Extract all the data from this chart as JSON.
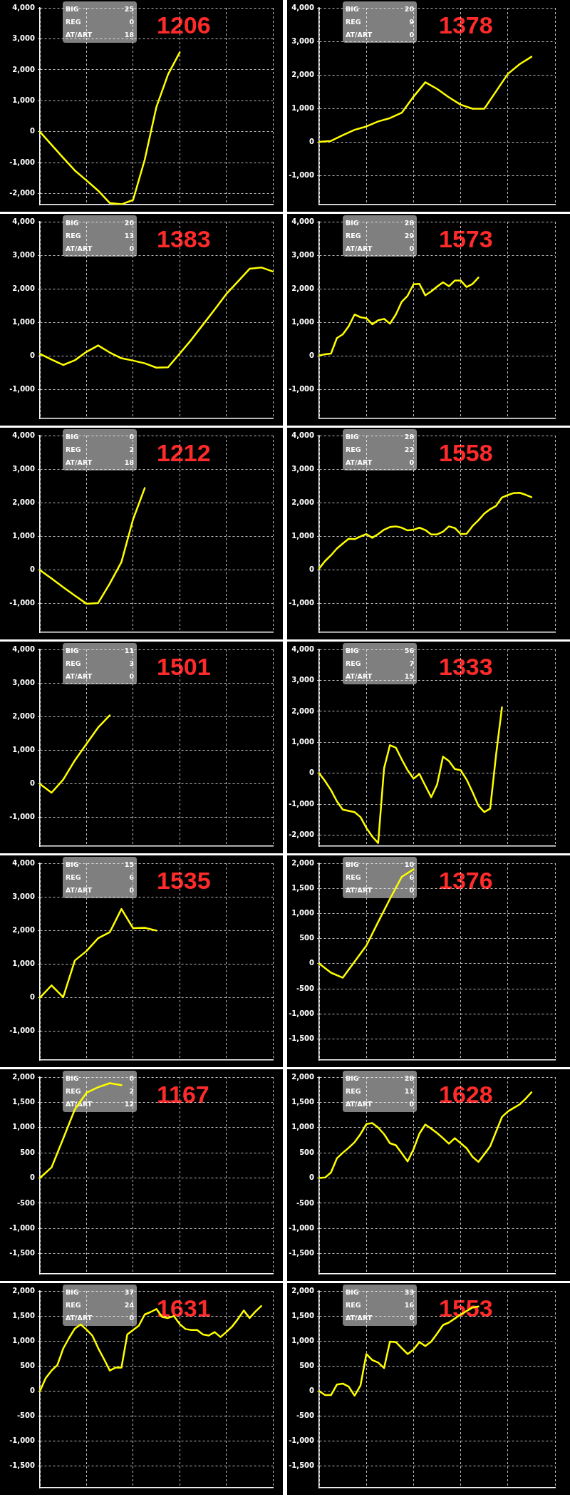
{
  "chart_data": [
    {
      "type": "line",
      "title": "1206",
      "annotations": [
        "BIG",
        "25",
        "REG",
        "0",
        "AT/ART",
        "18"
      ],
      "grid": true,
      "marker": "none",
      "line_style": "solid",
      "tick_labels": "y",
      "ylim": [
        -2350,
        4000
      ],
      "yticks": [
        {
          "value": -2000,
          "label": "-2,000"
        },
        {
          "value": -1000,
          "label": "-1,000"
        },
        0,
        {
          "value": 1000,
          "label": "1,000"
        },
        {
          "value": 2000,
          "label": "2,000"
        },
        {
          "value": 3000,
          "label": "3,000"
        },
        {
          "value": 4000,
          "label": "4,000"
        }
      ],
      "categories": [
        null,
        null,
        null,
        null,
        null,
        null,
        null,
        null,
        null,
        null,
        null,
        null,
        null,
        null,
        null,
        null,
        null,
        null,
        null,
        null,
        null
      ],
      "series": [
        {
          "color": "#ffff00",
          "values": [
            0,
            -420,
            -840,
            -1250,
            -1570,
            -1900,
            -2300,
            -2340,
            -2200,
            -900,
            800,
            1850,
            2560,
            null,
            null,
            null,
            null,
            null,
            null,
            null,
            null
          ]
        }
      ]
    },
    {
      "type": "line",
      "title": "1378",
      "annotations": [
        "BIG",
        "20",
        "REG",
        "9",
        "AT/ART",
        "0"
      ],
      "grid": true,
      "marker": "none",
      "line_style": "solid",
      "tick_labels": "y",
      "ylim": [
        -1870,
        4000
      ],
      "yticks": [
        {
          "value": -1000,
          "label": "-1,000"
        },
        0,
        {
          "value": 1000,
          "label": "1,000"
        },
        {
          "value": 2000,
          "label": "2,000"
        },
        {
          "value": 3000,
          "label": "3,000"
        },
        {
          "value": 4000,
          "label": "4,000"
        }
      ],
      "categories": [
        null,
        null,
        null,
        null,
        null,
        null,
        null,
        null,
        null,
        null,
        null,
        null,
        null,
        null,
        null,
        null,
        null,
        null,
        null,
        null,
        null
      ],
      "series": [
        {
          "color": "#ffff00",
          "values": [
            0,
            30,
            200,
            360,
            460,
            610,
            710,
            870,
            1350,
            1780,
            1580,
            1330,
            1110,
            990,
            990,
            1510,
            2030,
            2320,
            2540,
            null,
            null
          ]
        }
      ]
    },
    {
      "type": "line",
      "title": "1383",
      "annotations": [
        "BIG",
        "20",
        "REG",
        "13",
        "AT/ART",
        "0"
      ],
      "grid": true,
      "marker": "none",
      "line_style": "solid",
      "tick_labels": "y",
      "ylim": [
        -1850,
        4000
      ],
      "yticks": [
        {
          "value": -1000,
          "label": "-1,000"
        },
        0,
        {
          "value": 1000,
          "label": "1,000"
        },
        {
          "value": 2000,
          "label": "2,000"
        },
        {
          "value": 3000,
          "label": "3,000"
        },
        {
          "value": 4000,
          "label": "4,000"
        }
      ],
      "categories": [
        null,
        null,
        null,
        null,
        null,
        null,
        null,
        null,
        null,
        null,
        null,
        null,
        null,
        null,
        null,
        null,
        null,
        null,
        null,
        null,
        null
      ],
      "series": [
        {
          "color": "#ffff00",
          "values": [
            70,
            -100,
            -260,
            -120,
            130,
            320,
            110,
            -60,
            -130,
            -210,
            -340,
            -330,
            80,
            490,
            940,
            1390,
            1850,
            2220,
            2600,
            2640,
            2520
          ]
        }
      ]
    },
    {
      "type": "line",
      "title": "1573",
      "annotations": [
        "BIG",
        "28",
        "REG",
        "29",
        "AT/ART",
        "0"
      ],
      "grid": true,
      "marker": "none",
      "line_style": "solid",
      "tick_labels": "y",
      "ylim": [
        -1850,
        4000
      ],
      "yticks": [
        {
          "value": -1000,
          "label": "-1,000"
        },
        0,
        {
          "value": 1000,
          "label": "1,000"
        },
        {
          "value": 2000,
          "label": "2,000"
        },
        {
          "value": 3000,
          "label": "3,000"
        },
        {
          "value": 4000,
          "label": "4,000"
        }
      ],
      "categories": [
        null,
        null,
        null,
        null,
        null,
        null,
        null,
        null,
        null,
        null,
        null,
        null,
        null,
        null,
        null,
        null,
        null,
        null,
        null,
        null,
        null,
        null,
        null,
        null,
        null,
        null,
        null,
        null,
        null,
        null,
        null,
        null,
        null,
        null,
        null,
        null,
        null,
        null,
        null,
        null,
        null
      ],
      "series": [
        {
          "color": "#ffff00",
          "values": [
            20,
            60,
            80,
            540,
            650,
            890,
            1240,
            1160,
            1130,
            950,
            1070,
            1110,
            970,
            1240,
            1620,
            1800,
            2140,
            2150,
            1810,
            1930,
            2070,
            2200,
            2080,
            2250,
            2250,
            2060,
            2150,
            2340,
            null,
            null,
            null,
            null,
            null,
            null,
            null,
            null,
            null,
            null,
            null,
            null,
            null
          ]
        }
      ]
    },
    {
      "type": "line",
      "title": "1212",
      "annotations": [
        "BIG",
        "0",
        "REG",
        "2",
        "AT/ART",
        "18"
      ],
      "grid": true,
      "marker": "none",
      "line_style": "solid",
      "tick_labels": "y",
      "ylim": [
        -1850,
        4000
      ],
      "yticks": [
        {
          "value": -1000,
          "label": "-1,000"
        },
        0,
        {
          "value": 1000,
          "label": "1,000"
        },
        {
          "value": 2000,
          "label": "2,000"
        },
        {
          "value": 3000,
          "label": "3,000"
        },
        {
          "value": 4000,
          "label": "4,000"
        }
      ],
      "categories": [
        null,
        null,
        null,
        null,
        null,
        null,
        null,
        null,
        null,
        null,
        null,
        null,
        null,
        null,
        null,
        null,
        null,
        null,
        null,
        null,
        null
      ],
      "series": [
        {
          "color": "#ffff00",
          "values": [
            0,
            -250,
            -510,
            -760,
            -1000,
            -980,
            -400,
            240,
            1510,
            2440,
            null,
            null,
            null,
            null,
            null,
            null,
            null,
            null,
            null,
            null,
            null
          ]
        }
      ]
    },
    {
      "type": "line",
      "title": "1558",
      "annotations": [
        "BIG",
        "28",
        "REG",
        "22",
        "AT/ART",
        "0"
      ],
      "grid": true,
      "marker": "none",
      "line_style": "solid",
      "tick_labels": "y",
      "ylim": [
        -1850,
        4000
      ],
      "yticks": [
        {
          "value": -1000,
          "label": "-1,000"
        },
        0,
        {
          "value": 1000,
          "label": "1,000"
        },
        {
          "value": 2000,
          "label": "2,000"
        },
        {
          "value": 3000,
          "label": "3,000"
        },
        {
          "value": 4000,
          "label": "4,000"
        }
      ],
      "categories": [
        null,
        null,
        null,
        null,
        null,
        null,
        null,
        null,
        null,
        null,
        null,
        null,
        null,
        null,
        null,
        null,
        null,
        null,
        null,
        null,
        null,
        null,
        null,
        null,
        null,
        null,
        null,
        null,
        null,
        null,
        null,
        null,
        null,
        null,
        null,
        null,
        null,
        null,
        null,
        null,
        null
      ],
      "series": [
        {
          "color": "#ffff00",
          "values": [
            50,
            270,
            440,
            640,
            790,
            930,
            920,
            1000,
            1070,
            960,
            1070,
            1200,
            1280,
            1300,
            1260,
            1180,
            1200,
            1260,
            1190,
            1060,
            1060,
            1140,
            1300,
            1250,
            1070,
            1080,
            1310,
            1480,
            1680,
            1810,
            1910,
            2160,
            2230,
            2290,
            2300,
            2240,
            2170,
            null,
            null,
            null,
            null
          ]
        }
      ]
    },
    {
      "type": "line",
      "title": "1501",
      "annotations": [
        "BIG",
        "11",
        "REG",
        "3",
        "AT/ART",
        "0"
      ],
      "grid": true,
      "marker": "none",
      "line_style": "solid",
      "tick_labels": "y",
      "ylim": [
        -1850,
        4000
      ],
      "yticks": [
        {
          "value": -1000,
          "label": "-1,000"
        },
        0,
        {
          "value": 1000,
          "label": "1,000"
        },
        {
          "value": 2000,
          "label": "2,000"
        },
        {
          "value": 3000,
          "label": "3,000"
        },
        {
          "value": 4000,
          "label": "4,000"
        }
      ],
      "categories": [
        null,
        null,
        null,
        null,
        null,
        null,
        null,
        null,
        null,
        null,
        null,
        null,
        null,
        null,
        null,
        null,
        null,
        null,
        null,
        null,
        null
      ],
      "series": [
        {
          "color": "#ffff00",
          "values": [
            0,
            -260,
            130,
            700,
            1190,
            1680,
            2040,
            null,
            null,
            null,
            null,
            null,
            null,
            null,
            null,
            null,
            null,
            null,
            null,
            null,
            null
          ]
        }
      ]
    },
    {
      "type": "line",
      "title": "1333",
      "annotations": [
        "BIG",
        "56",
        "REG",
        "7",
        "AT/ART",
        "15"
      ],
      "grid": true,
      "marker": "none",
      "line_style": "solid",
      "tick_labels": "y",
      "ylim": [
        -2350,
        4000
      ],
      "yticks": [
        {
          "value": -2000,
          "label": "-2,000"
        },
        {
          "value": -1000,
          "label": "-1,000"
        },
        0,
        {
          "value": 1000,
          "label": "1,000"
        },
        {
          "value": 2000,
          "label": "2,000"
        },
        {
          "value": 3000,
          "label": "3,000"
        },
        {
          "value": 4000,
          "label": "4,000"
        }
      ],
      "categories": [
        null,
        null,
        null,
        null,
        null,
        null,
        null,
        null,
        null,
        null,
        null,
        null,
        null,
        null,
        null,
        null,
        null,
        null,
        null,
        null,
        null,
        null,
        null,
        null,
        null,
        null,
        null,
        null,
        null,
        null,
        null,
        null,
        null,
        null,
        null,
        null,
        null,
        null,
        null,
        null,
        null
      ],
      "series": [
        {
          "color": "#ffff00",
          "values": [
            0,
            -250,
            -540,
            -900,
            -1170,
            -1210,
            -1250,
            -1410,
            -1760,
            -2040,
            -2250,
            160,
            910,
            830,
            450,
            100,
            -170,
            -20,
            -400,
            -770,
            -360,
            540,
            400,
            140,
            100,
            -200,
            -600,
            -1040,
            -1250,
            -1140,
            600,
            2130,
            null,
            null,
            null,
            null,
            null,
            null,
            null,
            null,
            null
          ]
        }
      ]
    },
    {
      "type": "line",
      "title": "1535",
      "annotations": [
        "BIG",
        "15",
        "REG",
        "6",
        "AT/ART",
        "0"
      ],
      "grid": true,
      "marker": "none",
      "line_style": "solid",
      "tick_labels": "y",
      "ylim": [
        -1850,
        4000
      ],
      "yticks": [
        {
          "value": -1000,
          "label": "-1,000"
        },
        0,
        {
          "value": 1000,
          "label": "1,000"
        },
        {
          "value": 2000,
          "label": "2,000"
        },
        {
          "value": 3000,
          "label": "3,000"
        },
        {
          "value": 4000,
          "label": "4,000"
        }
      ],
      "categories": [
        null,
        null,
        null,
        null,
        null,
        null,
        null,
        null,
        null,
        null,
        null,
        null,
        null,
        null,
        null,
        null,
        null,
        null,
        null,
        null,
        null
      ],
      "series": [
        {
          "color": "#ffff00",
          "values": [
            0,
            370,
            20,
            1110,
            1390,
            1770,
            1950,
            2640,
            2070,
            2080,
            2000,
            null,
            null,
            null,
            null,
            null,
            null,
            null,
            null,
            null,
            null
          ]
        }
      ]
    },
    {
      "type": "line",
      "title": "1376",
      "annotations": [
        "BIG",
        "10",
        "REG",
        "6",
        "AT/ART",
        "0"
      ],
      "grid": true,
      "marker": "none",
      "line_style": "solid",
      "tick_labels": "y",
      "ylim": [
        -1920,
        2000
      ],
      "yticks": [
        {
          "value": -1500,
          "label": "-1,500"
        },
        {
          "value": -1000,
          "label": "-1,000"
        },
        -500,
        0,
        500,
        {
          "value": 1000,
          "label": "1,000"
        },
        {
          "value": 1500,
          "label": "1,500"
        },
        {
          "value": 2000,
          "label": "2,000"
        }
      ],
      "categories": [
        null,
        null,
        null,
        null,
        null,
        null,
        null,
        null,
        null,
        null,
        null,
        null,
        null,
        null,
        null,
        null,
        null,
        null,
        null,
        null,
        null
      ],
      "series": [
        {
          "color": "#ffff00",
          "values": [
            0,
            -180,
            -280,
            40,
            360,
            830,
            1290,
            1730,
            1880,
            null,
            null,
            null,
            null,
            null,
            null,
            null,
            null,
            null,
            null,
            null,
            null
          ]
        }
      ]
    },
    {
      "type": "line",
      "title": "1167",
      "annotations": [
        "BIG",
        "0",
        "REG",
        "2",
        "AT/ART",
        "12"
      ],
      "grid": true,
      "marker": "none",
      "line_style": "solid",
      "tick_labels": "y",
      "ylim": [
        -1900,
        2000
      ],
      "yticks": [
        {
          "value": -1500,
          "label": "-1,500"
        },
        {
          "value": -1000,
          "label": "-1,000"
        },
        -500,
        0,
        500,
        {
          "value": 1000,
          "label": "1,000"
        },
        {
          "value": 1500,
          "label": "1,500"
        },
        {
          "value": 2000,
          "label": "2,000"
        }
      ],
      "categories": [
        null,
        null,
        null,
        null,
        null,
        null,
        null,
        null,
        null,
        null,
        null,
        null,
        null,
        null,
        null,
        null,
        null,
        null,
        null,
        null,
        null
      ],
      "series": [
        {
          "color": "#ffff00",
          "values": [
            0,
            210,
            780,
            1360,
            1690,
            1800,
            1880,
            1840,
            null,
            null,
            null,
            null,
            null,
            null,
            null,
            null,
            null,
            null,
            null,
            null,
            null
          ]
        }
      ]
    },
    {
      "type": "line",
      "title": "1628",
      "annotations": [
        "BIG",
        "28",
        "REG",
        "11",
        "AT/ART",
        "0"
      ],
      "grid": true,
      "marker": "none",
      "line_style": "solid",
      "tick_labels": "y",
      "ylim": [
        -1900,
        2000
      ],
      "yticks": [
        {
          "value": -1500,
          "label": "-1,500"
        },
        {
          "value": -1000,
          "label": "-1,000"
        },
        -500,
        0,
        500,
        {
          "value": 1000,
          "label": "1,000"
        },
        {
          "value": 1500,
          "label": "1,500"
        },
        {
          "value": 2000,
          "label": "2,000"
        }
      ],
      "categories": [
        null,
        null,
        null,
        null,
        null,
        null,
        null,
        null,
        null,
        null,
        null,
        null,
        null,
        null,
        null,
        null,
        null,
        null,
        null,
        null,
        null,
        null,
        null,
        null,
        null,
        null,
        null,
        null,
        null,
        null,
        null,
        null,
        null,
        null,
        null,
        null,
        null,
        null,
        null,
        null,
        null
      ],
      "series": [
        {
          "color": "#ffff00",
          "values": [
            0,
            10,
            110,
            390,
            500,
            600,
            710,
            870,
            1070,
            1090,
            1000,
            870,
            690,
            650,
            490,
            330,
            570,
            880,
            1060,
            980,
            890,
            790,
            680,
            790,
            690,
            590,
            420,
            320,
            470,
            630,
            920,
            1210,
            1320,
            1390,
            1460,
            1570,
            1700,
            null,
            null,
            null,
            null
          ]
        }
      ]
    },
    {
      "type": "line",
      "title": "1631",
      "annotations": [
        "BIG",
        "37",
        "REG",
        "24",
        "AT/ART",
        "0"
      ],
      "grid": true,
      "marker": "none",
      "line_style": "solid",
      "tick_labels": "y",
      "ylim": [
        -1930,
        2000
      ],
      "yticks": [
        {
          "value": -1500,
          "label": "-1,500"
        },
        {
          "value": -1000,
          "label": "-1,000"
        },
        -500,
        0,
        500,
        {
          "value": 1000,
          "label": "1,000"
        },
        {
          "value": 1500,
          "label": "1,500"
        },
        {
          "value": 2000,
          "label": "2,000"
        }
      ],
      "categories": [
        null,
        null,
        null,
        null,
        null,
        null,
        null,
        null,
        null,
        null,
        null,
        null,
        null,
        null,
        null,
        null,
        null,
        null,
        null,
        null,
        null,
        null,
        null,
        null,
        null,
        null,
        null,
        null,
        null,
        null,
        null,
        null,
        null,
        null,
        null,
        null,
        null,
        null,
        null,
        null,
        null
      ],
      "series": [
        {
          "color": "#ffff00",
          "values": [
            0,
            260,
            410,
            520,
            850,
            1060,
            1250,
            1330,
            1230,
            1110,
            860,
            640,
            410,
            470,
            470,
            1130,
            1220,
            1310,
            1530,
            1580,
            1640,
            1480,
            1460,
            1500,
            1340,
            1240,
            1220,
            1220,
            1130,
            1110,
            1180,
            1080,
            1180,
            1290,
            1440,
            1610,
            1460,
            1590,
            1700,
            null,
            null
          ]
        }
      ]
    },
    {
      "type": "line",
      "title": "1553",
      "annotations": [
        "BIG",
        "33",
        "REG",
        "16",
        "AT/ART",
        "0"
      ],
      "grid": true,
      "marker": "none",
      "line_style": "solid",
      "tick_labels": "y",
      "ylim": [
        -1930,
        2000
      ],
      "yticks": [
        {
          "value": -1500,
          "label": "-1,500"
        },
        {
          "value": -1000,
          "label": "-1,000"
        },
        -500,
        0,
        500,
        {
          "value": 1000,
          "label": "1,000"
        },
        {
          "value": 1500,
          "label": "1,500"
        },
        {
          "value": 2000,
          "label": "2,000"
        }
      ],
      "categories": [
        null,
        null,
        null,
        null,
        null,
        null,
        null,
        null,
        null,
        null,
        null,
        null,
        null,
        null,
        null,
        null,
        null,
        null,
        null,
        null,
        null,
        null,
        null,
        null,
        null,
        null,
        null,
        null,
        null,
        null,
        null,
        null,
        null,
        null,
        null,
        null,
        null,
        null,
        null,
        null,
        null
      ],
      "series": [
        {
          "color": "#ffff00",
          "values": [
            0,
            -80,
            -80,
            130,
            150,
            90,
            -90,
            110,
            740,
            620,
            570,
            460,
            990,
            980,
            860,
            740,
            830,
            980,
            900,
            990,
            1150,
            1320,
            1370,
            1450,
            1530,
            1600,
            1670,
            1690,
            null,
            null,
            null,
            null,
            null,
            null,
            null,
            null,
            null,
            null,
            null,
            null,
            null
          ]
        }
      ]
    }
  ]
}
